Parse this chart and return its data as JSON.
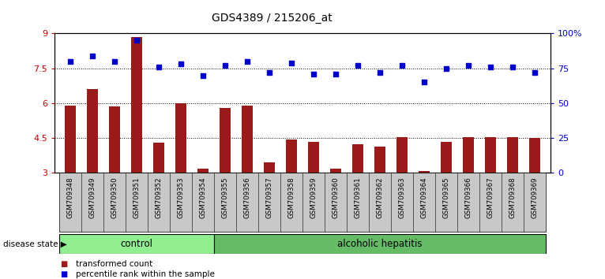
{
  "title": "GDS4389 / 215206_at",
  "samples": [
    "GSM709348",
    "GSM709349",
    "GSM709350",
    "GSM709351",
    "GSM709352",
    "GSM709353",
    "GSM709354",
    "GSM709355",
    "GSM709356",
    "GSM709357",
    "GSM709358",
    "GSM709359",
    "GSM709360",
    "GSM709361",
    "GSM709362",
    "GSM709363",
    "GSM709364",
    "GSM709365",
    "GSM709366",
    "GSM709367",
    "GSM709368",
    "GSM709369"
  ],
  "transformed_count": [
    5.9,
    6.6,
    5.85,
    8.85,
    4.3,
    6.0,
    3.2,
    5.8,
    5.9,
    3.45,
    4.45,
    4.35,
    3.2,
    4.25,
    4.15,
    4.55,
    3.1,
    4.35,
    4.55,
    4.55,
    4.55,
    4.5
  ],
  "percentile_rank": [
    80,
    84,
    80,
    95,
    76,
    78,
    70,
    77,
    80,
    72,
    79,
    71,
    71,
    77,
    72,
    77,
    65,
    75,
    77,
    76,
    76,
    72
  ],
  "ylim_left": [
    3,
    9
  ],
  "ylim_right": [
    0,
    100
  ],
  "yticks_left": [
    3,
    4.5,
    6,
    7.5,
    9
  ],
  "yticks_right": [
    0,
    25,
    50,
    75,
    100
  ],
  "ytick_labels_left": [
    "3",
    "4.5",
    "6",
    "7.5",
    "9"
  ],
  "ytick_labels_right": [
    "0",
    "25",
    "50",
    "75",
    "100%"
  ],
  "bar_color": "#9B1B1B",
  "dot_color": "#0000CC",
  "control_count": 7,
  "alcoholic_count": 15,
  "control_label": "control",
  "alcoholic_label": "alcoholic hepatitis",
  "disease_state_label": "disease state",
  "legend_bar_label": "transformed count",
  "legend_dot_label": "percentile rank within the sample",
  "control_color": "#90EE90",
  "alcoholic_color": "#66BB66",
  "xticklabel_bg": "#C8C8C8",
  "grid_color": "black",
  "background_color": "#FFFFFF"
}
